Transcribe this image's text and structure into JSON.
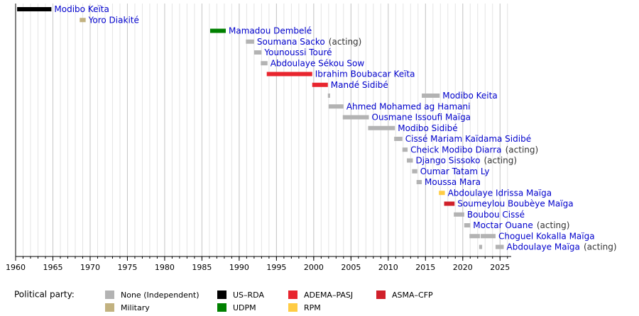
{
  "chart_data": {
    "type": "timeline",
    "xlim": [
      1960,
      2026.5
    ],
    "xticks": [
      1960,
      1965,
      1970,
      1975,
      1980,
      1985,
      1990,
      1995,
      2000,
      2005,
      2010,
      2015,
      2020,
      2025
    ],
    "minor_tick_step": 1,
    "grid": true,
    "legend_title": "Political party:",
    "legend_position": "bottom",
    "parties": [
      {
        "name": "None (Independent)",
        "color": "#b3b3b3"
      },
      {
        "name": "Military",
        "color": "#c2b280"
      },
      {
        "name": "US–RDA",
        "color": "#000000"
      },
      {
        "name": "UDPM",
        "color": "#008000"
      },
      {
        "name": "ADEMA–PASJ",
        "color": "#e8252e"
      },
      {
        "name": "RPM",
        "color": "#ffcc44"
      },
      {
        "name": "ASMA–CFP",
        "color": "#d0202a"
      }
    ],
    "rows": [
      {
        "name": "Modibo Keïta",
        "party": "US–RDA",
        "spans": [
          [
            1960.2,
            1964.8
          ]
        ]
      },
      {
        "name": "Yoro Diakité",
        "party": "Military",
        "spans": [
          [
            1968.6,
            1969.4
          ]
        ]
      },
      {
        "name": "Mamadou Dembelé",
        "party": "UDPM",
        "spans": [
          [
            1986.1,
            1988.2
          ]
        ]
      },
      {
        "name": "Soumana Sacko",
        "note": "(acting)",
        "party": "None (Independent)",
        "spans": [
          [
            1990.9,
            1992.0
          ]
        ]
      },
      {
        "name": "Younoussi Touré",
        "party": "None (Independent)",
        "spans": [
          [
            1992.0,
            1993.0
          ]
        ]
      },
      {
        "name": "Abdoulaye Sékou Sow",
        "party": "None (Independent)",
        "spans": [
          [
            1992.9,
            1993.8
          ]
        ]
      },
      {
        "name": "Ibrahim Boubacar Keïta",
        "party": "ADEMA–PASJ",
        "spans": [
          [
            1993.7,
            1999.8
          ]
        ]
      },
      {
        "name": "Mandé Sidibé",
        "party": "ADEMA–PASJ",
        "spans": [
          [
            1999.8,
            2001.9
          ]
        ]
      },
      {
        "name": "Modibo Keita",
        "party": "None (Independent)",
        "spans": [
          [
            2001.9,
            2002.2
          ],
          [
            2014.5,
            2016.9
          ]
        ]
      },
      {
        "name": "Ahmed Mohamed ag Hamani",
        "party": "None (Independent)",
        "spans": [
          [
            2002.0,
            2004.0
          ]
        ]
      },
      {
        "name": "Ousmane Issoufi Maïga",
        "party": "None (Independent)",
        "spans": [
          [
            2003.9,
            2007.4
          ]
        ]
      },
      {
        "name": "Modibo Sidibé",
        "party": "None (Independent)",
        "spans": [
          [
            2007.3,
            2010.9
          ]
        ]
      },
      {
        "name": "Cissé Mariam Kaïdama Sidibé",
        "party": "None (Independent)",
        "spans": [
          [
            2010.8,
            2011.9
          ]
        ]
      },
      {
        "name": "Cheick Modibo Diarra",
        "note": "(acting)",
        "party": "None (Independent)",
        "spans": [
          [
            2011.9,
            2012.6
          ]
        ]
      },
      {
        "name": "Django Sissoko",
        "note": "(acting)",
        "party": "None (Independent)",
        "spans": [
          [
            2012.5,
            2013.3
          ]
        ]
      },
      {
        "name": "Oumar Tatam Ly",
        "party": "None (Independent)",
        "spans": [
          [
            2013.2,
            2013.9
          ]
        ]
      },
      {
        "name": "Moussa Mara",
        "party": "None (Independent)",
        "spans": [
          [
            2013.8,
            2014.5
          ]
        ]
      },
      {
        "name": "Abdoulaye Idrissa Maïga",
        "party": "RPM",
        "spans": [
          [
            2016.8,
            2017.6
          ]
        ]
      },
      {
        "name": "Soumeylou Boubèye Maïga",
        "party": "ASMA–CFP",
        "spans": [
          [
            2017.5,
            2018.9
          ]
        ]
      },
      {
        "name": "Boubou Cissé",
        "party": "None (Independent)",
        "spans": [
          [
            2018.8,
            2020.2
          ]
        ]
      },
      {
        "name": "Moctar Ouane",
        "note": "(acting)",
        "party": "None (Independent)",
        "spans": [
          [
            2020.2,
            2021.0
          ]
        ]
      },
      {
        "name": "Choguel Kokalla Maïga",
        "party": "None (Independent)",
        "spans": [
          [
            2020.9,
            2022.3
          ],
          [
            2022.4,
            2024.4
          ]
        ]
      },
      {
        "name": "Abdoulaye Maïga",
        "note": "(acting)",
        "party": "None (Independent)",
        "spans": [
          [
            2022.2,
            2022.6
          ],
          [
            2024.4,
            2025.5
          ]
        ]
      }
    ]
  }
}
